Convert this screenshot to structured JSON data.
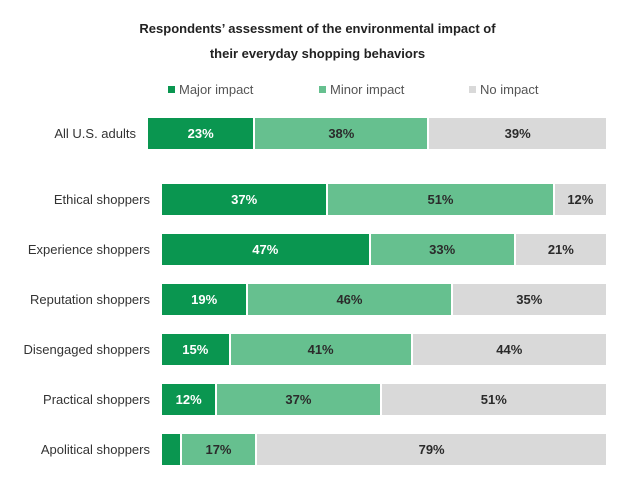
{
  "chart_data": {
    "type": "bar",
    "orientation": "horizontal",
    "stacked": true,
    "title": "Respondents’ assessment of the environmental impact of their everyday shopping behaviors",
    "title_lines": [
      "Respondents’ assessment of the environmental impact of",
      "their everyday shopping behaviors"
    ],
    "xlabel": "",
    "ylabel": "",
    "xlim": [
      0,
      100
    ],
    "grid": false,
    "legend_position": "top",
    "categories": [
      "All U.S. adults",
      "Ethical shoppers",
      "Experience shoppers",
      "Reputation shoppers",
      "Disengaged shoppers",
      "Practical shoppers",
      "Apolitical shoppers"
    ],
    "series": [
      {
        "name": "Major impact",
        "color": "#0a9650",
        "values": [
          23,
          37,
          47,
          19,
          15,
          12,
          4
        ],
        "labels": [
          "23%",
          "37%",
          "47%",
          "19%",
          "15%",
          "12%",
          ""
        ]
      },
      {
        "name": "Minor impact",
        "color": "#66c08f",
        "values": [
          38,
          51,
          33,
          46,
          41,
          37,
          17
        ],
        "labels": [
          "38%",
          "51%",
          "33%",
          "46%",
          "41%",
          "37%",
          "17%"
        ]
      },
      {
        "name": "No impact",
        "color": "#d9d9d9",
        "values": [
          39,
          12,
          21,
          35,
          44,
          51,
          79
        ],
        "labels": [
          "39%",
          "12%",
          "21%",
          "35%",
          "44%",
          "51%",
          "79%"
        ]
      }
    ]
  }
}
